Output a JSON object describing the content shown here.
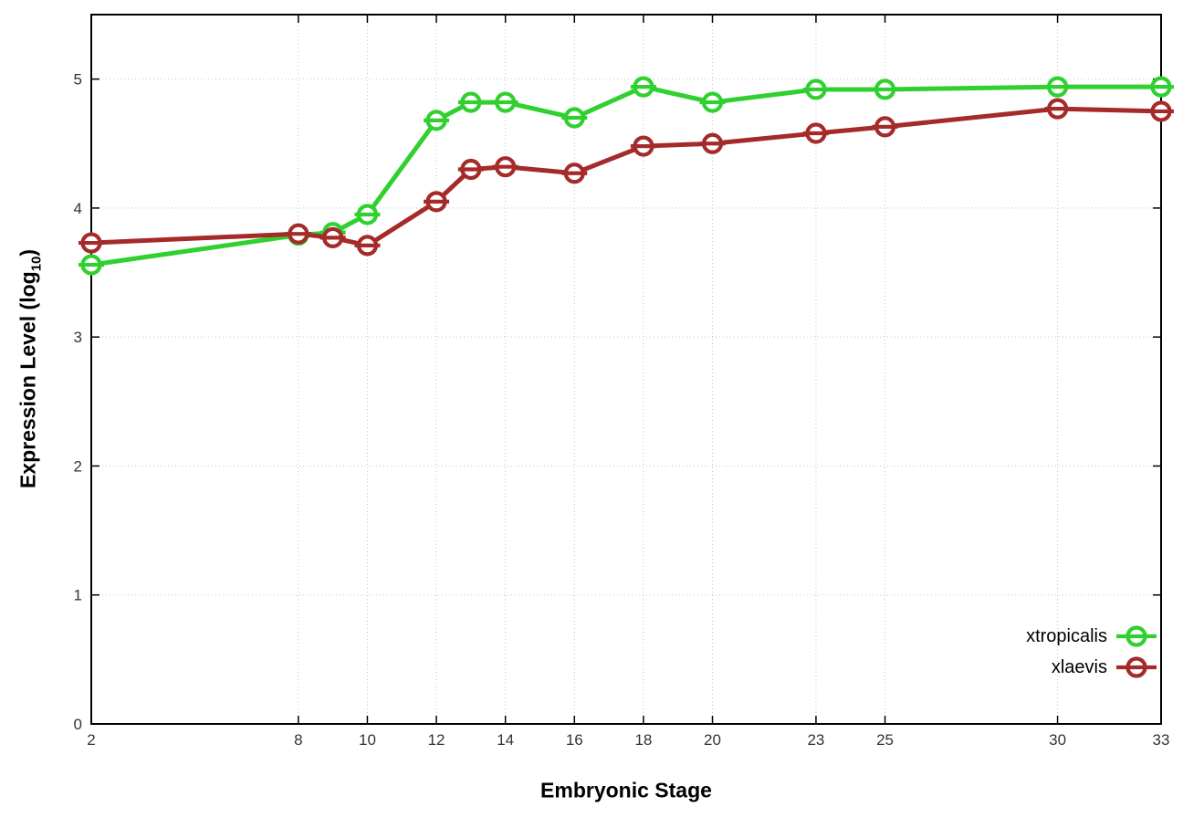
{
  "chart_data": {
    "type": "line",
    "title": "",
    "xlabel": "Embryonic Stage",
    "ylabel": "Expression Level (log10)",
    "ylabel_parts": {
      "pre": "Expression Level (log",
      "sub": "10",
      "post": ")"
    },
    "x": [
      2,
      8,
      9,
      10,
      12,
      13,
      14,
      16,
      18,
      20,
      23,
      25,
      30,
      33
    ],
    "series": [
      {
        "name": "xtropicalis",
        "color": "#30d030",
        "values": [
          3.56,
          3.79,
          3.81,
          3.95,
          4.68,
          4.82,
          4.82,
          4.7,
          4.94,
          4.82,
          4.92,
          4.92,
          4.94,
          4.94
        ]
      },
      {
        "name": "xlaevis",
        "color": "#a52a2a",
        "values": [
          3.73,
          3.8,
          3.77,
          3.71,
          4.05,
          4.3,
          4.32,
          4.27,
          4.48,
          4.5,
          4.58,
          4.63,
          4.77,
          4.75
        ]
      }
    ],
    "xlim": [
      2,
      33
    ],
    "ylim": [
      0,
      5.5
    ],
    "x_ticks": [
      2,
      8,
      10,
      12,
      14,
      16,
      18,
      20,
      23,
      25,
      30,
      33
    ],
    "y_ticks": [
      0,
      1,
      2,
      3,
      4,
      5
    ],
    "grid": true,
    "legend_position": "bottom-right",
    "marker": "open-circle-with-horizontal-bar"
  },
  "colors": {
    "background": "#ffffff",
    "plot_border": "#000000",
    "grid": "#c4c4c4",
    "tick_label": "#333333"
  }
}
